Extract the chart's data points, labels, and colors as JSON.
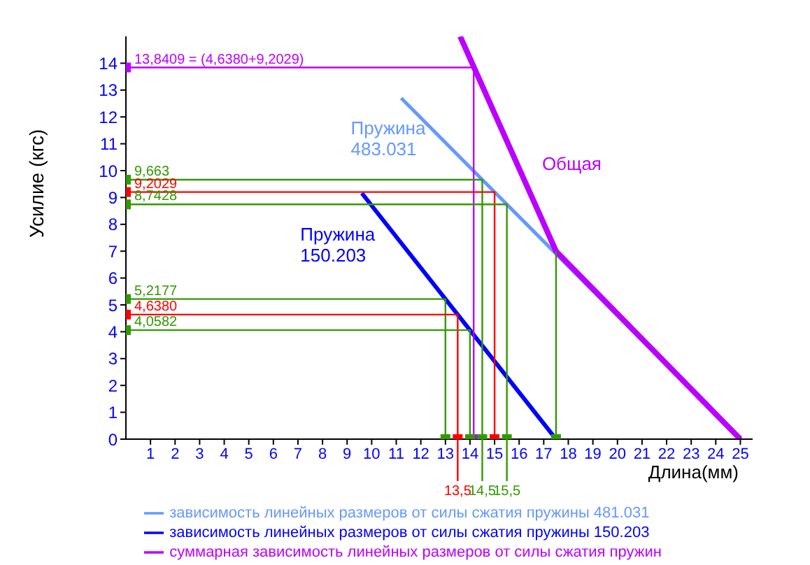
{
  "chart_data": {
    "type": "line",
    "xlabel": "Длина(мм)",
    "ylabel": "Усилие (кгс)",
    "xlim": [
      0,
      25.5
    ],
    "xticks": [
      1,
      2,
      3,
      4,
      5,
      6,
      7,
      8,
      9,
      10,
      11,
      12,
      13,
      14,
      15,
      16,
      17,
      18,
      19,
      20,
      21,
      22,
      23,
      24,
      25
    ],
    "ylim": [
      0,
      15
    ],
    "yticks": [
      0,
      1,
      2,
      3,
      4,
      5,
      6,
      7,
      8,
      9,
      10,
      11,
      12,
      13,
      14
    ],
    "grid": false,
    "legend": "bottom",
    "marker": "none",
    "line_style": "solid",
    "annotations": [
      "Пружина 483.031",
      "Пружина 150.203",
      "Общая",
      {
        "text": "13,8409 = (4,6380+9,2029)",
        "x": 0,
        "y": 13.8409
      },
      {
        "text": "9,663",
        "x": 0,
        "y": 9.663
      },
      {
        "text": "9,2029",
        "x": 0,
        "y": 9.2029
      },
      {
        "text": "8,7428",
        "x": 0,
        "y": 8.7428
      },
      {
        "text": "5,2177",
        "x": 0,
        "y": 5.2177
      },
      {
        "text": "4,6380",
        "x": 0,
        "y": 4.638
      },
      {
        "text": "4,0582",
        "x": 0,
        "y": 4.0582
      },
      {
        "text": "13,5",
        "x": 13.5,
        "y": 0
      },
      {
        "text": "14,5",
        "x": 14.5,
        "y": 0
      },
      {
        "text": "15,5",
        "x": 15.5,
        "y": 0
      }
    ],
    "series": [
      {
        "name": "зависимость линейных размеров от силы сжатия пружины 481.031",
        "color": "#6699ff",
        "x": [
          11.2,
          25
        ],
        "values": [
          12.7,
          0
        ]
      },
      {
        "name": "зависимость линейных размеров от силы сжатия пружины 150.203",
        "color": "#0000ff",
        "x": [
          9.6,
          17.5
        ],
        "values": [
          9.16,
          0
        ]
      },
      {
        "name": "суммарная зависимость линейных размеров от силы сжатия пружин",
        "color": "#bb00ff",
        "x": [
          13.6,
          17.5,
          25
        ],
        "values": [
          15,
          7,
          0
        ]
      },
      {
        "color": "#bb00ff",
        "marker": "square",
        "x": [
          0,
          14.15,
          14.15
        ],
        "values": [
          13.8409,
          13.8409,
          0
        ]
      },
      {
        "color": "#339900",
        "marker": "square",
        "x": [
          0,
          14.5,
          14.5
        ],
        "values": [
          9.663,
          9.663,
          0
        ]
      },
      {
        "color": "#ff0000",
        "marker": "square",
        "x": [
          0,
          15,
          15
        ],
        "values": [
          9.2029,
          9.2029,
          0
        ]
      },
      {
        "color": "#339900",
        "marker": "square",
        "x": [
          0,
          15.5,
          15.5
        ],
        "values": [
          8.7428,
          8.7428,
          0
        ]
      },
      {
        "color": "#339900",
        "marker": "square",
        "x": [
          0,
          13,
          13
        ],
        "values": [
          5.2177,
          5.2177,
          0
        ]
      },
      {
        "color": "#ff0000",
        "marker": "square",
        "x": [
          0,
          13.5,
          13.5
        ],
        "values": [
          4.638,
          4.638,
          0
        ]
      },
      {
        "color": "#339900",
        "marker": "square",
        "x": [
          0,
          14,
          14
        ],
        "values": [
          4.0582,
          4.0582,
          0
        ]
      },
      {
        "color": "#339900",
        "marker": "square",
        "x": [
          17.5,
          17.5
        ],
        "values": [
          7,
          0
        ]
      }
    ]
  }
}
